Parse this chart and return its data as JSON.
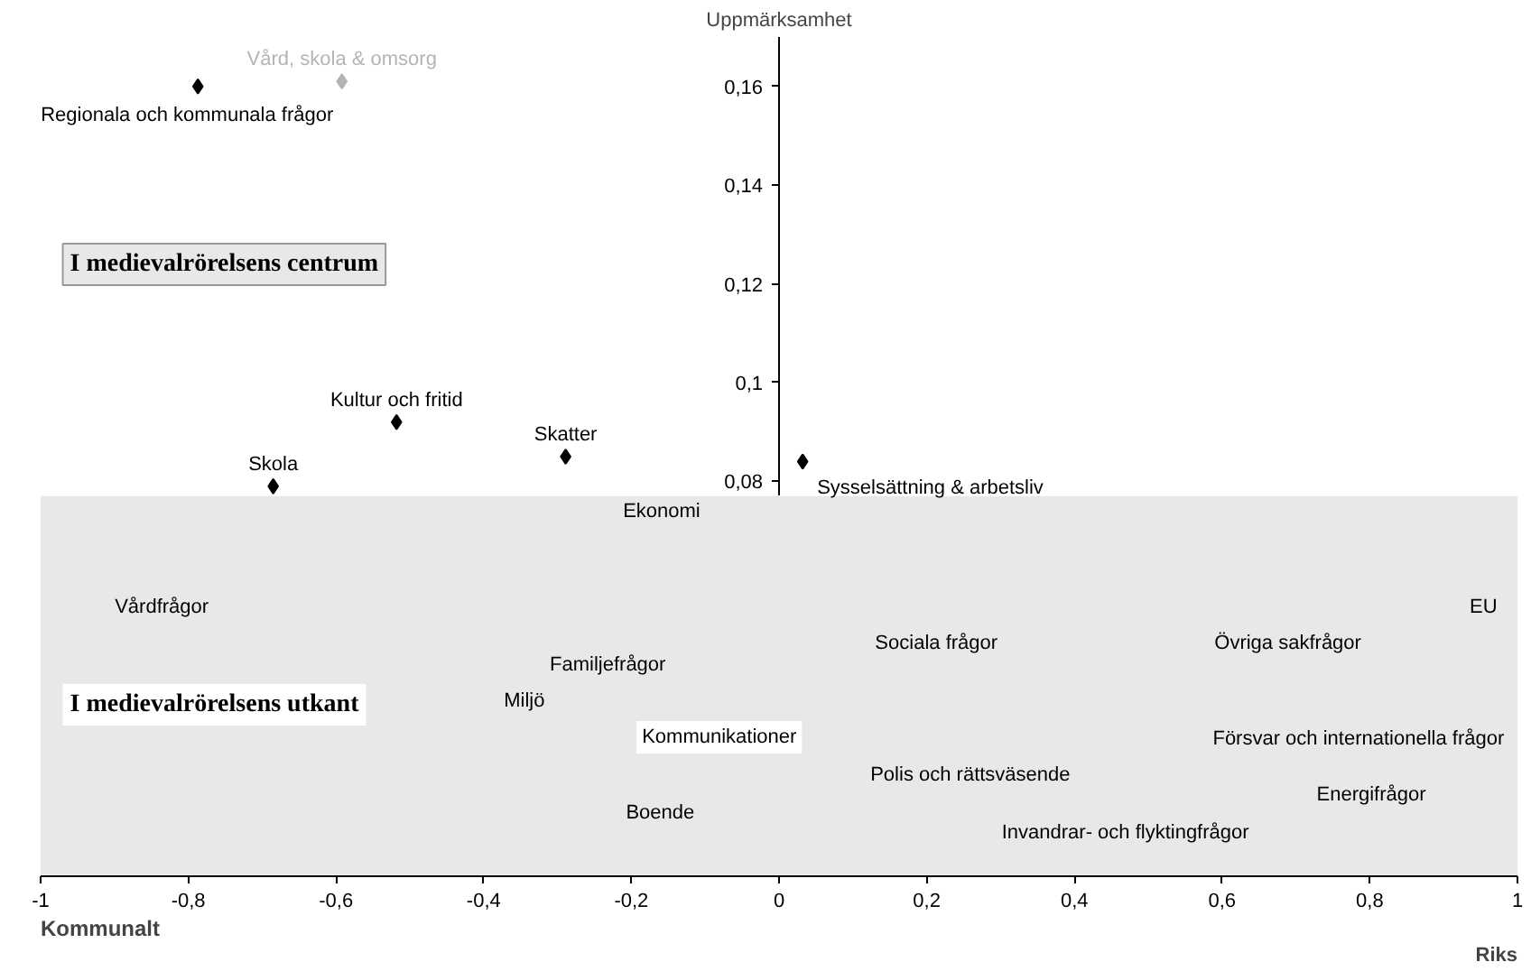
{
  "chart_data": {
    "type": "scatter",
    "ylabel": "Uppmärksamhet",
    "xlabel": "Kommunalt",
    "marker": "diamond",
    "grid": false,
    "xlim": [
      -1,
      1
    ],
    "ylim": [
      0,
      0.17
    ],
    "xticks": [
      -1,
      {
        "value": -0.8,
        "label": "-0,8"
      },
      {
        "value": -0.6,
        "label": "-0,6"
      },
      {
        "value": -0.4,
        "label": "-0,4"
      },
      {
        "value": -0.2,
        "label": "-0,2"
      },
      0,
      {
        "value": 0.2,
        "label": "0,2"
      },
      {
        "value": 0.4,
        "label": "0,4"
      },
      {
        "value": 0.6,
        "label": "0,6"
      },
      {
        "value": 0.8,
        "label": "0,8"
      },
      1
    ],
    "yticks": [
      {
        "value": 0.08,
        "label": "0,08"
      },
      {
        "value": 0.1,
        "label": "0,1"
      },
      {
        "value": 0.12,
        "label": "0,12"
      },
      {
        "value": 0.14,
        "label": "0,14"
      },
      {
        "value": 0.16,
        "label": "0,16"
      }
    ],
    "series": [
      {
        "name": "Regionala och kommunala frågor",
        "color": "#000000",
        "x": [
          -0.787
        ],
        "values": [
          0.16
        ]
      },
      {
        "name": "Vård, skola & omsorg",
        "color": "#b4b4b4",
        "x": [
          -0.592
        ],
        "values": [
          0.161
        ]
      },
      {
        "name": "Kultur och fritid",
        "color": "#000000",
        "x": [
          -0.518
        ],
        "values": [
          0.092
        ]
      },
      {
        "name": "Skatter",
        "color": "#000000",
        "x": [
          -0.289
        ],
        "values": [
          0.085
        ]
      },
      {
        "name": "Skola",
        "color": "#000000",
        "x": [
          -0.685
        ],
        "values": [
          0.079
        ]
      },
      {
        "name": "Sysselsättning & arbetsliv",
        "color": "#000000",
        "x": [
          0.032
        ],
        "values": [
          0.084
        ]
      }
    ],
    "bands": [
      {
        "axis": "y",
        "from": 0,
        "to": 0.077,
        "color": "#e8e8e8"
      }
    ],
    "annotations": [
      "I medievalrörelsens centrum",
      "I medievalrörelsens utkant",
      "Riks",
      "Ekonomi",
      "Vårdfrågor",
      "EU",
      "Sociala frågor",
      "Övriga sakfrågor",
      "Familjefrågor",
      "Miljö",
      "Kommunikationer",
      "Försvar och internationella frågor",
      "Polis och rättsväsende",
      "Energifrågor",
      "Boende",
      "Invandrar- och flyktingfrågor"
    ]
  }
}
